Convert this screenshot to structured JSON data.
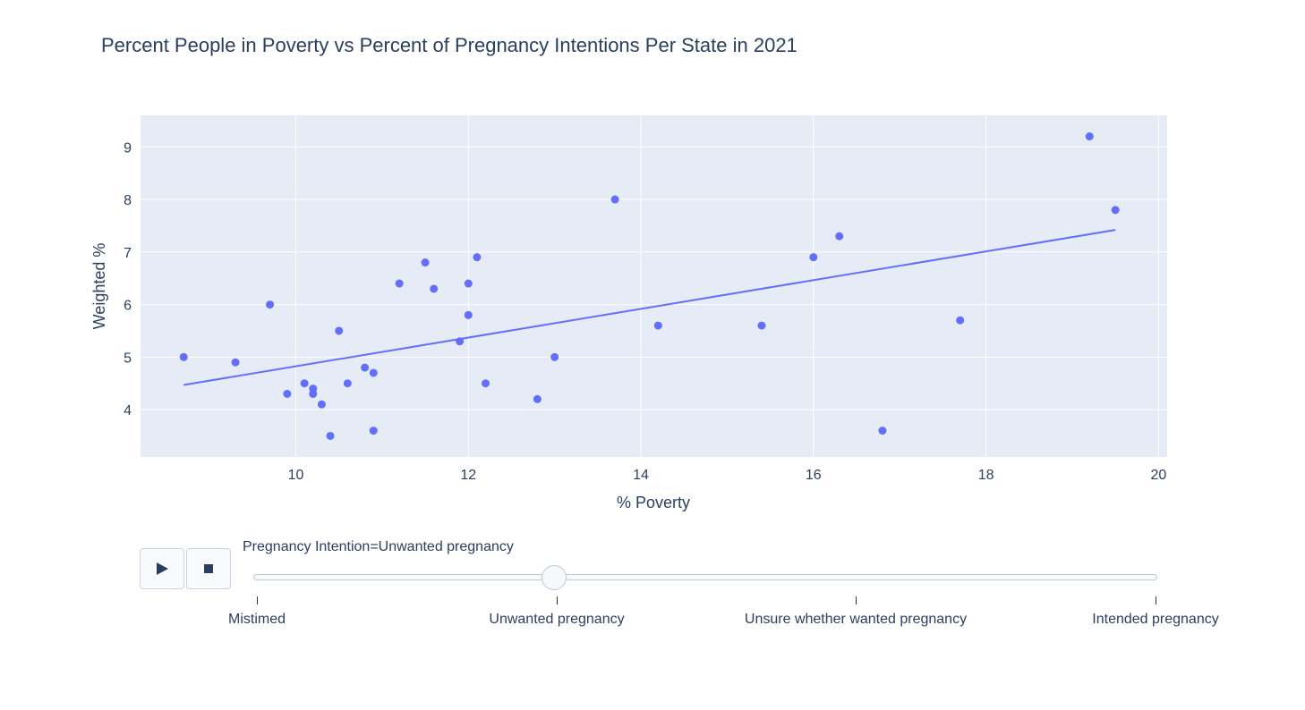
{
  "chart_data": {
    "type": "scatter",
    "title": "Percent People in Poverty vs Percent of Pregnancy Intentions Per State in 2021",
    "xlabel": "% Poverty",
    "ylabel": "Weighted %",
    "xlim": [
      8.2,
      20.1
    ],
    "ylim": [
      3.1,
      9.6
    ],
    "xticks": [
      10,
      12,
      14,
      16,
      18,
      20
    ],
    "yticks": [
      4,
      5,
      6,
      7,
      8,
      9
    ],
    "grid": true,
    "colors": {
      "marker": "#636efa",
      "plot_bg": "#e5ecf6",
      "grid": "#ffffff",
      "text": "#2a3f5f"
    },
    "series": [
      {
        "x": [
          8.7,
          9.3,
          9.7,
          9.9,
          10.1,
          10.2,
          10.2,
          10.3,
          10.4,
          10.5,
          10.6,
          10.8,
          10.9,
          10.9,
          11.2,
          11.5,
          11.6,
          11.9,
          12.0,
          12.0,
          12.1,
          12.2,
          12.8,
          13.0,
          13.7,
          14.2,
          15.4,
          16.0,
          16.3,
          16.8,
          17.7,
          19.2,
          19.5
        ],
        "y": [
          5.0,
          4.9,
          6.0,
          4.3,
          4.5,
          4.4,
          4.3,
          4.1,
          3.5,
          5.5,
          4.5,
          4.8,
          4.7,
          3.6,
          6.4,
          6.8,
          6.3,
          5.3,
          6.4,
          5.8,
          6.9,
          4.5,
          4.2,
          5.0,
          8.0,
          5.6,
          5.6,
          6.9,
          7.3,
          3.6,
          5.7,
          9.2,
          7.8
        ]
      }
    ],
    "trendline": {
      "x": [
        8.7,
        19.5
      ],
      "y": [
        4.47,
        7.42
      ]
    }
  },
  "animation": {
    "play_icon": "play-icon",
    "stop_icon": "stop-icon",
    "current_value_label": "Pregnancy Intention=Unwanted pregnancy",
    "steps": [
      "Mistimed",
      "Unwanted pregnancy",
      "Unsure whether wanted pregnancy",
      "Intended pregnancy"
    ],
    "active_step": 1
  }
}
